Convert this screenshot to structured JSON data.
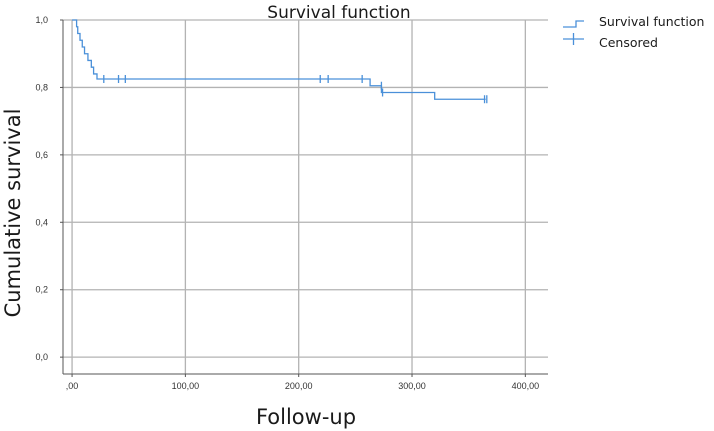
{
  "chart_data": {
    "type": "line",
    "subtype": "kaplan-meier",
    "title": "Survival function",
    "xlabel": "Follow-up",
    "ylabel": "Cumulative survival",
    "xlim": [
      -8,
      420
    ],
    "ylim": [
      -0.05,
      1.0
    ],
    "x_ticks": [
      0,
      100,
      200,
      300,
      400
    ],
    "x_tick_labels": [
      ",00",
      "100,00",
      "200,00",
      "300,00",
      "400,00"
    ],
    "y_ticks": [
      0.0,
      0.2,
      0.4,
      0.6,
      0.8,
      1.0
    ],
    "y_tick_labels": [
      "0,0",
      "0,2",
      "0,4",
      "0,6",
      "0,8",
      "1,0"
    ],
    "grid": true,
    "legend_position": "top-right",
    "colors": {
      "line": "#4a90d9",
      "grid": "#b3b3b3",
      "axis": "#555555"
    },
    "series": [
      {
        "name": "Survival function",
        "steps": [
          [
            0,
            1.0
          ],
          [
            4,
            0.98
          ],
          [
            5,
            0.96
          ],
          [
            7,
            0.94
          ],
          [
            9,
            0.92
          ],
          [
            11,
            0.9
          ],
          [
            14,
            0.88
          ],
          [
            17,
            0.86
          ],
          [
            19,
            0.84
          ],
          [
            22,
            0.825
          ],
          [
            258,
            0.825
          ],
          [
            263,
            0.805
          ],
          [
            273,
            0.785
          ],
          [
            320,
            0.765
          ],
          [
            365,
            0.765
          ]
        ]
      },
      {
        "name": "Censored",
        "points": [
          [
            28,
            0.825
          ],
          [
            41,
            0.825
          ],
          [
            47,
            0.825
          ],
          [
            219,
            0.825
          ],
          [
            226,
            0.825
          ],
          [
            256,
            0.825
          ],
          [
            273,
            0.805
          ],
          [
            274,
            0.785
          ],
          [
            364,
            0.765
          ],
          [
            366,
            0.765
          ]
        ]
      }
    ]
  }
}
